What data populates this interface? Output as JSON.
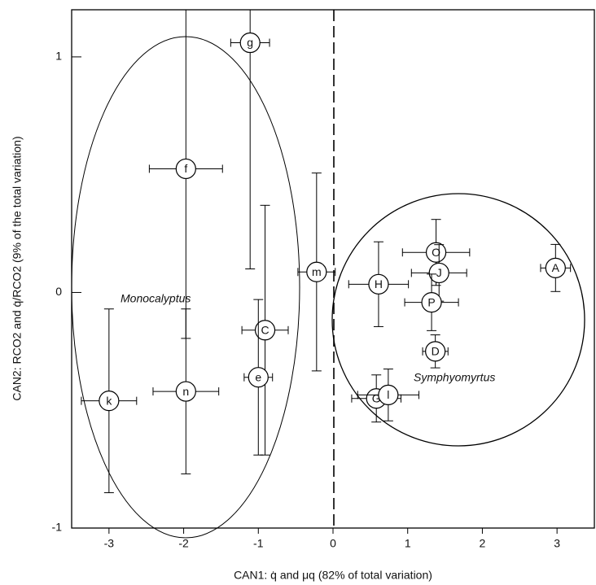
{
  "chart_data": {
    "type": "scatter",
    "x_label": "CAN1: q̇ and μq (82% of total variation)",
    "y_label": "CAN2: RCO2 and q̇/RCO2 (9% of the total variation)",
    "point_labels": [
      "g",
      "f",
      "m",
      "C",
      "e",
      "k",
      "n",
      "H",
      "O",
      "J",
      "A",
      "P",
      "D",
      "G",
      "l"
    ],
    "x": [
      -1.11,
      -1.97,
      -0.22,
      -0.91,
      -1.0,
      -3.0,
      -1.97,
      0.61,
      1.38,
      1.42,
      2.98,
      1.32,
      1.37,
      0.58,
      0.74
    ],
    "values": [
      1.06,
      0.525,
      0.087,
      -0.16,
      -0.36,
      -0.46,
      -0.42,
      0.035,
      0.17,
      0.083,
      0.104,
      -0.042,
      -0.25,
      -0.45,
      -0.435
    ],
    "x_err": [
      0.26,
      0.49,
      0.25,
      0.31,
      0.19,
      0.37,
      0.44,
      0.4,
      0.45,
      0.37,
      0.2,
      0.36,
      0.17,
      0.33,
      0.41
    ],
    "y_err": [
      0.96,
      0.72,
      0.42,
      0.53,
      0.33,
      0.39,
      0.35,
      0.18,
      0.14,
      0.12,
      0.1,
      0.12,
      0.07,
      0.1,
      0.11
    ],
    "color": "#000000",
    "xlim": [
      -3.5,
      3.5
    ],
    "xticks": [
      -3,
      -2,
      -1,
      0,
      1,
      2,
      3
    ],
    "ylim": [
      -1,
      1.2
    ],
    "yticks": [
      -1,
      0,
      1
    ],
    "annotations": [
      "Monocalyptus",
      "Symphyomyrtus"
    ]
  }
}
